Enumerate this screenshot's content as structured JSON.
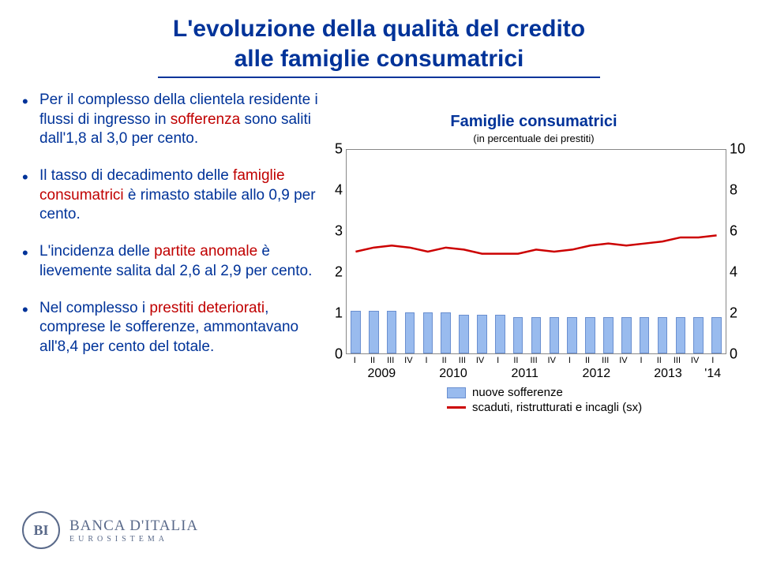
{
  "title_line1": "L'evoluzione della qualità del credito",
  "title_line2": "alle famiglie consumatrici",
  "bullets": [
    {
      "pre": "Per il complesso della clientela residente i flussi di ingresso in ",
      "em": "sofferenza",
      "post": " sono saliti dall'1,8 al 3,0 per cento."
    },
    {
      "pre": "Il tasso di decadimento delle ",
      "em": "famiglie consumatrici",
      "post": " è rimasto stabile allo 0,9 per cento."
    },
    {
      "pre": "L'incidenza delle ",
      "em": "partite anomale",
      "post": " è lievemente salita dal 2,6 al 2,9 per cento."
    },
    {
      "pre": "Nel complesso i ",
      "em": "prestiti deteriorati",
      "post": ", comprese le sofferenze, ammontavano all'8,4 per cento del totale."
    }
  ],
  "chart": {
    "title": "Famiglie consumatrici",
    "subtitle": "(in percentuale dei prestiti)",
    "left_ticks": [
      5,
      4,
      3,
      2,
      1,
      0
    ],
    "right_ticks": [
      10,
      8,
      6,
      4,
      2,
      0
    ],
    "left_max": 5,
    "bar_color": "#99bbee",
    "bar_border": "#6a8fd0",
    "line_color": "#cc0000",
    "line_width": 2.5,
    "quarters": [
      "I",
      "II",
      "III",
      "IV",
      "I",
      "II",
      "III",
      "IV",
      "I",
      "II",
      "III",
      "IV",
      "I",
      "II",
      "III",
      "IV",
      "I",
      "II",
      "III",
      "IV",
      "I"
    ],
    "years": [
      "2009",
      "2010",
      "2011",
      "2012",
      "2013",
      "'14"
    ],
    "year_span": [
      4,
      4,
      4,
      4,
      4,
      1
    ],
    "bars_values": [
      1.05,
      1.05,
      1.05,
      1.0,
      1.0,
      1.0,
      0.95,
      0.95,
      0.95,
      0.9,
      0.9,
      0.9,
      0.9,
      0.9,
      0.9,
      0.9,
      0.9,
      0.9,
      0.9,
      0.9,
      0.9
    ],
    "line_values": [
      2.5,
      2.6,
      2.65,
      2.6,
      2.5,
      2.6,
      2.55,
      2.45,
      2.45,
      2.45,
      2.55,
      2.5,
      2.55,
      2.65,
      2.7,
      2.65,
      2.7,
      2.75,
      2.85,
      2.85,
      2.9
    ],
    "legend": {
      "bar_label": "nuove sofferenze",
      "line_label": "scaduti, ristrutturati e incagli (sx)"
    }
  },
  "logo": {
    "bank": "BANCA D'ITALIA",
    "euro": "EUROSISTEMA",
    "mono": "BI"
  }
}
